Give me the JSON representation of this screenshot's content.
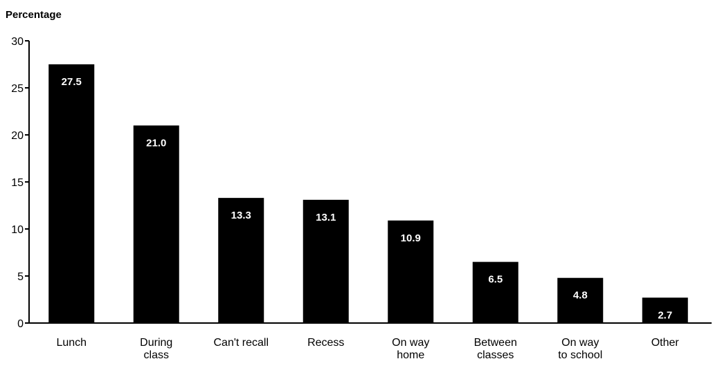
{
  "chart_data": {
    "type": "bar",
    "ylabel": "Percentage",
    "xlabel": "",
    "ylim": [
      0,
      30
    ],
    "yticks": [
      0,
      5,
      10,
      15,
      20,
      25,
      30
    ],
    "grid": false,
    "legend": "none",
    "categories": [
      [
        "Lunch"
      ],
      [
        "During",
        "class"
      ],
      [
        "Can't recall"
      ],
      [
        "Recess"
      ],
      [
        "On way",
        "home"
      ],
      [
        "Between",
        "classes"
      ],
      [
        "On way",
        "to school"
      ],
      [
        "Other"
      ]
    ],
    "values": [
      27.5,
      21.0,
      13.3,
      13.1,
      10.9,
      6.5,
      4.8,
      2.7
    ],
    "value_labels": [
      "27.5",
      "21.0",
      "13.3",
      "13.1",
      "10.9",
      "6.5",
      "4.8",
      "2.7"
    ],
    "bar_color": "#000000",
    "value_label_color": "#ffffff"
  }
}
